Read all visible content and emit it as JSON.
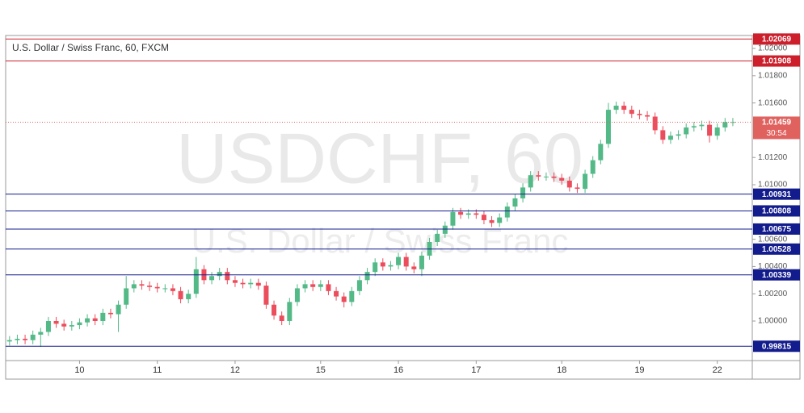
{
  "chart_data": {
    "type": "candlestick",
    "title": "U.S. Dollar / Swiss Franc, 60, FXCM",
    "watermark": "USDCHF, 60",
    "watermark_subtitle": "U.S. Dollar / Swiss Franc",
    "categories": [
      null,
      null,
      null,
      null,
      null,
      null,
      null,
      null,
      null,
      "10",
      null,
      null,
      null,
      null,
      null,
      null,
      null,
      null,
      null,
      "11",
      null,
      null,
      null,
      null,
      null,
      null,
      null,
      null,
      null,
      "12",
      null,
      null,
      null,
      null,
      null,
      null,
      null,
      null,
      null,
      null,
      "15",
      null,
      null,
      null,
      null,
      null,
      null,
      null,
      null,
      null,
      "16",
      null,
      null,
      null,
      null,
      null,
      null,
      null,
      null,
      null,
      "17",
      null,
      null,
      null,
      null,
      null,
      null,
      null,
      null,
      null,
      null,
      "18",
      null,
      null,
      null,
      null,
      null,
      null,
      null,
      null,
      null,
      "19",
      null,
      null,
      null,
      null,
      null,
      null,
      null,
      null,
      null,
      "22",
      null,
      null,
      null,
      null
    ],
    "open": [
      0.9985,
      0.9986,
      0.9987,
      0.9986,
      0.999,
      0.9992,
      1.0,
      0.9998,
      0.9996,
      0.9997,
      0.9999,
      1.0002,
      1.0,
      1.0006,
      1.0005,
      1.0012,
      1.0024,
      1.0027,
      1.0026,
      1.0025,
      1.0024,
      1.0024,
      1.0022,
      1.0016,
      1.002,
      1.0038,
      1.003,
      1.0033,
      1.0036,
      1.003,
      1.0028,
      1.0027,
      1.0028,
      1.0026,
      1.0012,
      1.0004,
      1.0,
      1.0014,
      1.0024,
      1.0027,
      1.0025,
      1.0027,
      1.0022,
      1.0018,
      1.0014,
      1.0022,
      1.003,
      1.0036,
      1.0043,
      1.004,
      1.0041,
      1.0047,
      1.004,
      1.0038,
      1.0048,
      1.0058,
      1.0064,
      1.007,
      1.008,
      1.0078,
      1.0079,
      1.0078,
      1.0074,
      1.0072,
      1.0076,
      1.0084,
      1.009,
      1.0098,
      1.0107,
      1.0106,
      1.0106,
      1.0105,
      1.0103,
      1.0098,
      1.0097,
      1.0108,
      1.0118,
      1.013,
      1.0155,
      1.0158,
      1.0155,
      1.0152,
      1.0151,
      1.015,
      1.014,
      1.0133,
      1.0136,
      1.0137,
      1.0142,
      1.0143,
      1.0144,
      1.0136,
      1.0142,
      1.0146,
      null,
      null
    ],
    "high": [
      0.9989,
      0.999,
      0.999,
      0.9993,
      0.9995,
      1.0003,
      1.0003,
      1.0001,
      1.0,
      1.0002,
      1.0005,
      1.0005,
      1.0009,
      1.0009,
      1.0015,
      1.0033,
      1.003,
      1.003,
      1.0029,
      1.0028,
      1.0027,
      1.0027,
      1.0025,
      1.0023,
      1.0047,
      1.0041,
      1.0036,
      1.0039,
      1.0039,
      1.0033,
      1.0031,
      1.0031,
      1.0031,
      1.0029,
      1.0015,
      1.0007,
      1.0017,
      1.0027,
      1.003,
      1.003,
      1.003,
      1.003,
      1.0025,
      1.0021,
      1.0025,
      1.0033,
      1.0039,
      1.0046,
      1.0046,
      1.0044,
      1.005,
      1.005,
      1.0043,
      1.0051,
      1.0061,
      1.0067,
      1.0073,
      1.0083,
      1.0083,
      1.0082,
      1.0082,
      1.0081,
      1.0077,
      1.0079,
      1.0087,
      1.0093,
      1.0101,
      1.011,
      1.011,
      1.0109,
      1.0109,
      1.0108,
      1.0106,
      1.0101,
      1.0111,
      1.0121,
      1.0133,
      1.016,
      1.0161,
      1.0161,
      1.0158,
      1.0155,
      1.0154,
      1.0153,
      1.0143,
      1.0139,
      1.014,
      1.0145,
      1.0146,
      1.0147,
      1.0147,
      1.0145,
      1.0149,
      1.0149,
      null,
      null
    ],
    "low": [
      0.9982,
      0.9983,
      0.9983,
      0.9983,
      0.9981,
      0.9989,
      0.9995,
      0.9993,
      0.9993,
      0.9994,
      0.9996,
      0.9997,
      0.9997,
      1.0002,
      0.9992,
      1.0009,
      1.0021,
      1.0023,
      1.0022,
      1.0021,
      1.0021,
      1.0019,
      1.0013,
      1.0013,
      1.0017,
      1.0027,
      1.0027,
      1.003,
      1.0027,
      1.0025,
      1.0024,
      1.0024,
      1.0023,
      1.0009,
      1.0001,
      0.9997,
      0.9997,
      1.0011,
      1.0021,
      1.0022,
      1.0022,
      1.0019,
      1.0015,
      1.001,
      1.0011,
      1.0019,
      1.0027,
      1.0033,
      1.0037,
      1.0037,
      1.0038,
      1.0037,
      1.0035,
      1.0033,
      1.0045,
      1.0055,
      1.0061,
      1.0067,
      1.0075,
      1.0075,
      1.0075,
      1.0071,
      1.0069,
      1.0069,
      1.0073,
      1.0081,
      1.0087,
      1.0095,
      1.0103,
      1.0103,
      1.0102,
      1.01,
      1.0095,
      1.0094,
      1.0094,
      1.0105,
      1.0115,
      1.0127,
      1.0152,
      1.0152,
      1.0149,
      1.0148,
      1.0147,
      1.0137,
      1.013,
      1.013,
      1.0133,
      1.0134,
      1.0139,
      1.014,
      1.0131,
      1.0133,
      1.0139,
      1.0143,
      null,
      null
    ],
    "close": [
      0.9986,
      0.9987,
      0.9986,
      0.999,
      0.9992,
      1.0,
      0.9998,
      0.9996,
      0.9997,
      0.9999,
      1.0002,
      1.0,
      1.0006,
      1.0005,
      1.0012,
      1.0024,
      1.0027,
      1.0026,
      1.0025,
      1.0024,
      1.0024,
      1.0022,
      1.0016,
      1.002,
      1.0038,
      1.003,
      1.0033,
      1.0036,
      1.003,
      1.0028,
      1.0027,
      1.0028,
      1.0026,
      1.0012,
      1.0004,
      1.0,
      1.0014,
      1.0024,
      1.0027,
      1.0025,
      1.0027,
      1.0022,
      1.0018,
      1.0014,
      1.0022,
      1.003,
      1.0036,
      1.0043,
      1.004,
      1.0041,
      1.0047,
      1.004,
      1.0038,
      1.0048,
      1.0058,
      1.0064,
      1.007,
      1.008,
      1.0078,
      1.0079,
      1.0078,
      1.0074,
      1.0072,
      1.0076,
      1.0084,
      1.009,
      1.0098,
      1.0107,
      1.0106,
      1.0106,
      1.0105,
      1.0103,
      1.0098,
      1.0097,
      1.0108,
      1.0118,
      1.013,
      1.0155,
      1.0158,
      1.0155,
      1.0152,
      1.0151,
      1.015,
      1.014,
      1.0133,
      1.0136,
      1.0137,
      1.0142,
      1.0143,
      1.0144,
      1.0136,
      1.0142,
      1.0146,
      1.0146,
      null,
      null
    ],
    "up_color": "#53b987",
    "down_color": "#eb4d5c",
    "ylim": [
      0.9971,
      1.02095
    ],
    "yticks": [
      {
        "value": 1.0,
        "label": "1.00000"
      },
      {
        "value": 1.002,
        "label": "1.00200"
      },
      {
        "value": 1.004,
        "label": "1.00400"
      },
      {
        "value": 1.006,
        "label": "1.00600"
      },
      {
        "value": 1.01,
        "label": "1.01000"
      },
      {
        "value": 1.012,
        "label": "1.01200"
      },
      {
        "value": 1.016,
        "label": "1.01600"
      },
      {
        "value": 1.018,
        "label": "1.01800"
      },
      {
        "value": 1.02,
        "label": "1.02000"
      }
    ],
    "levels": [
      {
        "value": 1.02069,
        "color": "#cc1f2b"
      },
      {
        "value": 1.01908,
        "color": "#cc1f2b"
      },
      {
        "value": 1.00931,
        "color": "#131c8c"
      },
      {
        "value": 1.00808,
        "color": "#131c8c"
      },
      {
        "value": 1.00675,
        "color": "#131c8c"
      },
      {
        "value": 1.00528,
        "color": "#131c8c"
      },
      {
        "value": 1.00339,
        "color": "#131c8c"
      },
      {
        "value": 0.99815,
        "color": "#131c8c"
      }
    ],
    "last_price": {
      "value": 1.01459,
      "color": "#e0625f",
      "countdown": "30:54"
    }
  }
}
